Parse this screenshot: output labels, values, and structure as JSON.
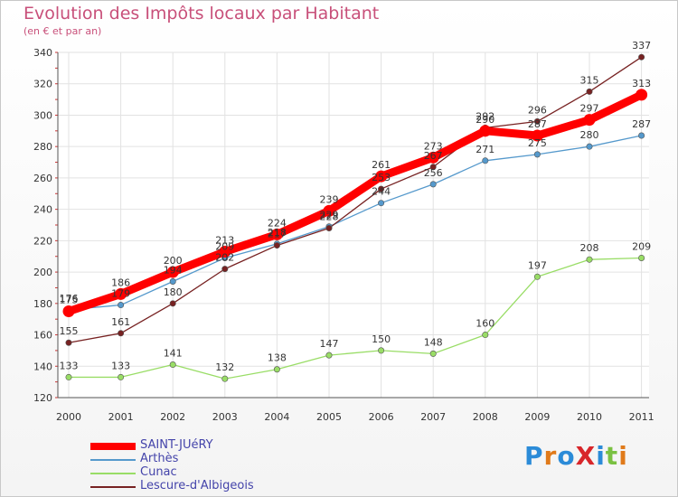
{
  "chart_data": {
    "type": "line",
    "title": "Evolution des Impôts locaux par Habitant",
    "subtitle": "(en € et par an)",
    "x": [
      "2000",
      "2001",
      "2002",
      "2003",
      "2004",
      "2005",
      "2006",
      "2007",
      "2008",
      "2009",
      "2010",
      "2011"
    ],
    "ylim": [
      120,
      340
    ],
    "yticks": [
      120,
      140,
      160,
      180,
      200,
      220,
      240,
      260,
      280,
      300,
      320,
      340
    ],
    "grid": true,
    "legend_position": "bottom-left",
    "series": [
      {
        "name": "SAINT-JUéRY",
        "color": "#ff0000",
        "values": [
          175,
          186,
          200,
          213,
          224,
          239,
          261,
          273,
          290,
          287,
          297,
          313
        ]
      },
      {
        "name": "Arthès",
        "color": "#5599cc",
        "values": [
          176,
          179,
          194,
          209,
          218,
          229,
          244,
          256,
          271,
          275,
          280,
          287
        ]
      },
      {
        "name": "Cunac",
        "color": "#99dd66",
        "values": [
          133,
          133,
          141,
          132,
          138,
          147,
          150,
          148,
          160,
          197,
          208,
          209
        ]
      },
      {
        "name": "Lescure-d'Albigeois",
        "color": "#772222",
        "values": [
          155,
          161,
          180,
          202,
          217,
          228,
          253,
          267,
          292,
          296,
          315,
          337
        ]
      }
    ]
  },
  "branding": {
    "logo": "ProXiti"
  }
}
